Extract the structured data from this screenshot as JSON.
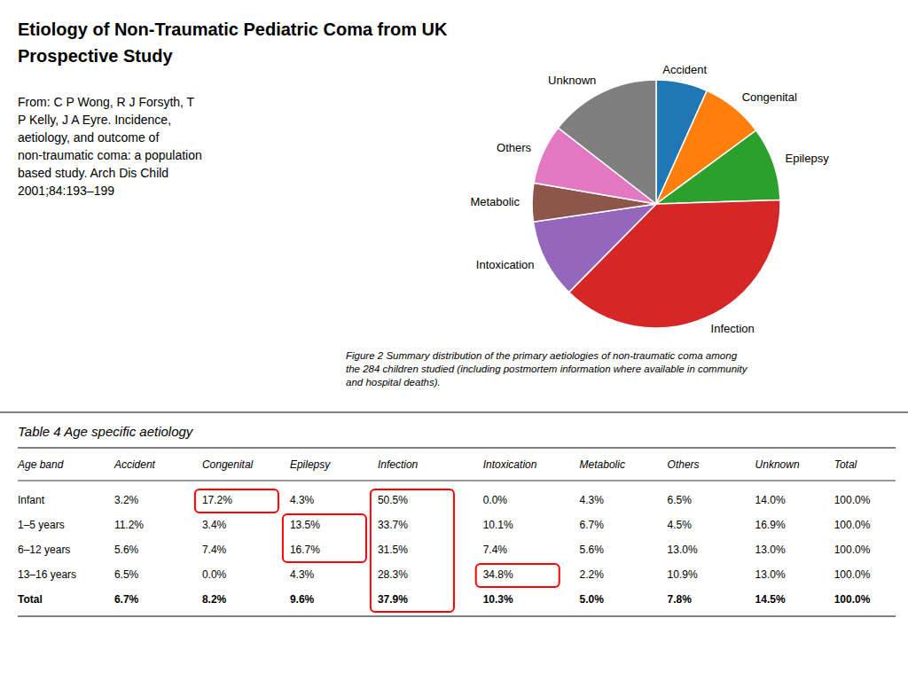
{
  "chart_data": [
    {
      "type": "pie",
      "title": "Etiology of Non-Traumatic Pediatric Coma from UK\nProspective Study",
      "annotations": [
        "From: C P Wong, R J Forsyth, T\nP Kelly, J A Eyre. Incidence,\naetiology, and outcome of\nnon-traumatic coma: a population\nbased study.  Arch Dis Child\n2001;84:193–199",
        "Figure 2    Summary distribution of the primary aetiologies of non-traumatic coma among\nthe 284 children studied (including postmortem information where available in community\nand hospital deaths)."
      ],
      "categories": [
        "Accident",
        "Congenital",
        "Epilepsy",
        "Infection",
        "Intoxication",
        "Metabolic",
        "Others",
        "Unknown"
      ],
      "values": [
        6.7,
        8.2,
        9.6,
        37.9,
        10.3,
        5.0,
        7.8,
        14.5
      ]
    },
    {
      "type": "table",
      "title": "Table 4    Age specific aetiology",
      "columns": [
        "Age band",
        "Accident",
        "Congenital",
        "Epilepsy",
        "Infection",
        "Intoxication",
        "Metabolic",
        "Others",
        "Unknown",
        "Total"
      ],
      "rows": [
        [
          "Infant",
          "3.2%",
          "17.2%",
          "4.3%",
          "50.5%",
          "0.0%",
          "4.3%",
          "6.5%",
          "14.0%",
          "100.0%"
        ],
        [
          "1–5 years",
          "11.2%",
          "3.4%",
          "13.5%",
          "33.7%",
          "10.1%",
          "6.7%",
          "4.5%",
          "16.9%",
          "100.0%"
        ],
        [
          "6–12 years",
          "5.6%",
          "7.4%",
          "16.7%",
          "31.5%",
          "7.4%",
          "5.6%",
          "13.0%",
          "13.0%",
          "100.0%"
        ],
        [
          "13–16 years",
          "6.5%",
          "0.0%",
          "4.3%",
          "28.3%",
          "34.8%",
          "2.2%",
          "10.9%",
          "13.0%",
          "100.0%"
        ],
        [
          "Total",
          "6.7%",
          "8.2%",
          "9.6%",
          "37.9%",
          "10.3%",
          "5.0%",
          "7.8%",
          "14.5%",
          "100.0%"
        ]
      ],
      "color": "red",
      "highlights": [
        {
          "column": "Infection",
          "rows": [
            "Infant",
            "1–5 years",
            "6–12 years",
            "13–16 years",
            "Total"
          ]
        },
        {
          "column": "Congenital",
          "rows": [
            "Infant"
          ]
        },
        {
          "column": "Epilepsy",
          "rows": [
            "1–5 years",
            "6–12 years"
          ]
        },
        {
          "column": "Intoxication",
          "rows": [
            "13–16 years"
          ]
        }
      ]
    }
  ]
}
